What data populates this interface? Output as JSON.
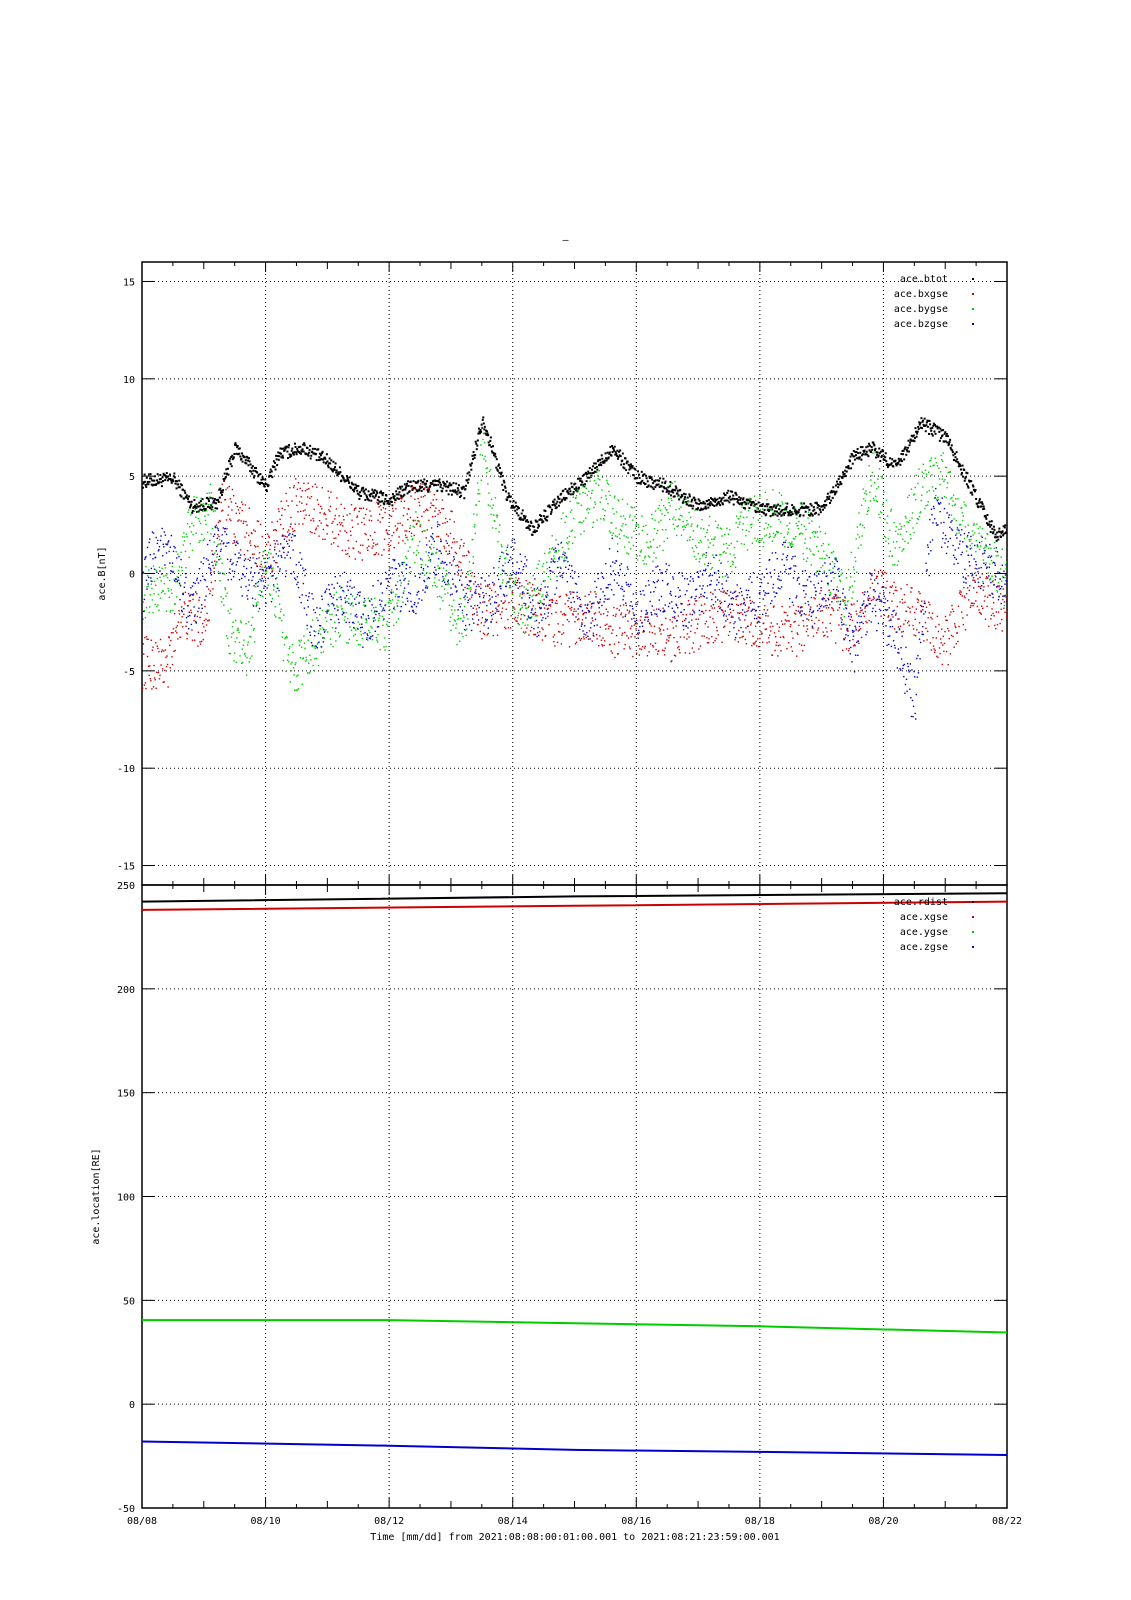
{
  "page_title": "–",
  "colors": {
    "btot": "#000000",
    "bxgse": "#cc0000",
    "bygse": "#00cc00",
    "bzgse": "#0000cc"
  },
  "xaxis": {
    "tick_labels": [
      "08/08",
      "08/10",
      "08/12",
      "08/14",
      "08/16",
      "08/18",
      "08/20",
      "08/22"
    ],
    "label": "Time [mm/dd]  from 2021:08:08:00:01:00.001  to  2021:08:21:23:59:00.001"
  },
  "chart_data": [
    {
      "type": "scatter",
      "ylabel": "ace.B[nT]",
      "ylim": [
        -16,
        16
      ],
      "yticks": [
        15,
        10,
        5,
        0,
        -5,
        -10,
        -15
      ],
      "xlim": [
        "2021-08-08",
        "2021-08-22"
      ],
      "grid": true,
      "legend_position": "top-right",
      "series": [
        {
          "name": "ace.btot",
          "color": "#000000",
          "x": [
            8.0,
            8.5,
            8.8,
            9.2,
            9.5,
            10.0,
            10.2,
            10.6,
            11.0,
            11.5,
            12.0,
            12.3,
            12.8,
            13.2,
            13.5,
            13.9,
            14.3,
            14.8,
            15.2,
            15.6,
            16.0,
            16.5,
            17.0,
            17.5,
            18.0,
            18.5,
            19.0,
            19.5,
            19.8,
            20.2,
            20.6,
            21.0,
            21.4,
            21.8,
            22.0
          ],
          "y": [
            4.8,
            4.9,
            3.5,
            3.7,
            6.5,
            4.5,
            6.2,
            6.5,
            5.8,
            4.2,
            3.8,
            4.5,
            4.6,
            4.2,
            8.0,
            4.0,
            2.3,
            4.0,
            5.0,
            6.5,
            5.0,
            4.5,
            3.5,
            4.0,
            3.3,
            3.3,
            3.4,
            6.0,
            6.5,
            5.5,
            7.8,
            7.0,
            4.5,
            2.0,
            2.5
          ]
        },
        {
          "name": "ace.bxgse",
          "color": "#cc0000",
          "x": [
            8.0,
            8.3,
            8.4,
            8.6,
            9.0,
            9.3,
            9.6,
            10.0,
            10.5,
            11.0,
            11.5,
            12.0,
            12.5,
            13.0,
            13.5,
            14.0,
            14.3,
            14.8,
            15.2,
            15.6,
            16.0,
            16.5,
            17.0,
            17.5,
            18.0,
            18.5,
            19.0,
            19.5,
            19.8,
            20.2,
            20.6,
            21.0,
            21.4,
            21.8,
            22.0
          ],
          "y": [
            -4.5,
            -4.6,
            -4.8,
            -2.0,
            -2.5,
            3.5,
            2.5,
            1.0,
            3.8,
            3.0,
            2.0,
            2.5,
            3.5,
            2.0,
            -2.0,
            -1.5,
            -1.8,
            -2.5,
            -2.0,
            -3.0,
            -2.8,
            -3.2,
            -2.5,
            -2.0,
            -3.0,
            -3.0,
            -2.0,
            -3.0,
            -1.0,
            -1.5,
            -2.0,
            -3.5,
            -1.0,
            -1.5,
            -2.5
          ]
        },
        {
          "name": "ace.bygse",
          "color": "#00cc00",
          "x": [
            8.0,
            8.5,
            8.8,
            9.1,
            9.4,
            9.7,
            10.0,
            10.4,
            10.8,
            11.2,
            11.6,
            12.0,
            12.4,
            12.8,
            13.2,
            13.5,
            13.8,
            14.2,
            14.6,
            15.0,
            15.4,
            15.8,
            16.2,
            16.6,
            17.0,
            17.4,
            17.8,
            18.2,
            18.6,
            19.0,
            19.4,
            19.8,
            20.2,
            20.6,
            21.0,
            21.4,
            21.8,
            22.0
          ],
          "y": [
            -1.0,
            -0.5,
            2.5,
            3.5,
            -3.0,
            -4.0,
            1.0,
            -5.0,
            -3.5,
            -2.0,
            -2.5,
            -2.5,
            2.0,
            -0.5,
            -3.0,
            6.5,
            1.0,
            -2.0,
            0.5,
            3.0,
            4.0,
            2.5,
            1.5,
            3.5,
            2.0,
            1.0,
            2.5,
            3.0,
            2.5,
            1.0,
            -1.5,
            5.5,
            1.0,
            4.5,
            5.0,
            1.5,
            0.5,
            -0.5
          ]
        },
        {
          "name": "ace.bzgse",
          "color": "#0000cc",
          "x": [
            8.0,
            8.2,
            8.5,
            8.8,
            9.2,
            9.6,
            10.0,
            10.4,
            10.8,
            11.2,
            11.6,
            12.0,
            12.4,
            12.8,
            13.2,
            13.6,
            14.0,
            14.4,
            14.8,
            15.2,
            15.6,
            16.0,
            16.4,
            16.8,
            17.2,
            17.6,
            18.0,
            18.4,
            18.8,
            19.2,
            19.5,
            19.8,
            20.2,
            20.5,
            20.8,
            21.2,
            21.6,
            22.0
          ],
          "y": [
            -1.0,
            1.5,
            0.5,
            -2.0,
            1.5,
            0.0,
            -0.5,
            1.5,
            -3.0,
            -1.0,
            -2.5,
            -0.5,
            -1.0,
            1.5,
            -1.5,
            -1.5,
            1.0,
            -2.0,
            1.0,
            -2.5,
            0.5,
            -2.0,
            -0.5,
            -1.5,
            0.0,
            -2.0,
            -1.0,
            0.5,
            -1.5,
            0.0,
            -4.0,
            -1.0,
            -3.5,
            -6.5,
            3.5,
            1.0,
            0.5,
            -0.5
          ]
        }
      ]
    },
    {
      "type": "scatter",
      "ylabel": "ace.location[RE]",
      "ylim": [
        -50,
        250
      ],
      "yticks": [
        250,
        200,
        150,
        100,
        50,
        0,
        -50
      ],
      "xlim": [
        "2021-08-08",
        "2021-08-22"
      ],
      "grid": true,
      "legend_position": "top-right",
      "series": [
        {
          "name": "ace.rdist",
          "color": "#000000",
          "x": [
            8.0,
            15.0,
            22.0
          ],
          "y": [
            242,
            244.5,
            246
          ]
        },
        {
          "name": "ace.xgse",
          "color": "#cc0000",
          "x": [
            8.0,
            15.0,
            22.0
          ],
          "y": [
            238,
            240,
            242
          ]
        },
        {
          "name": "ace.ygse",
          "color": "#00cc00",
          "x": [
            8.0,
            12.0,
            15.0,
            18.0,
            22.0
          ],
          "y": [
            40.5,
            40.5,
            39,
            37.5,
            34.5
          ]
        },
        {
          "name": "ace.zgse",
          "color": "#0000cc",
          "x": [
            8.0,
            12.0,
            15.0,
            18.0,
            22.0
          ],
          "y": [
            -18,
            -20,
            -22,
            -23,
            -24.5
          ]
        }
      ]
    }
  ]
}
